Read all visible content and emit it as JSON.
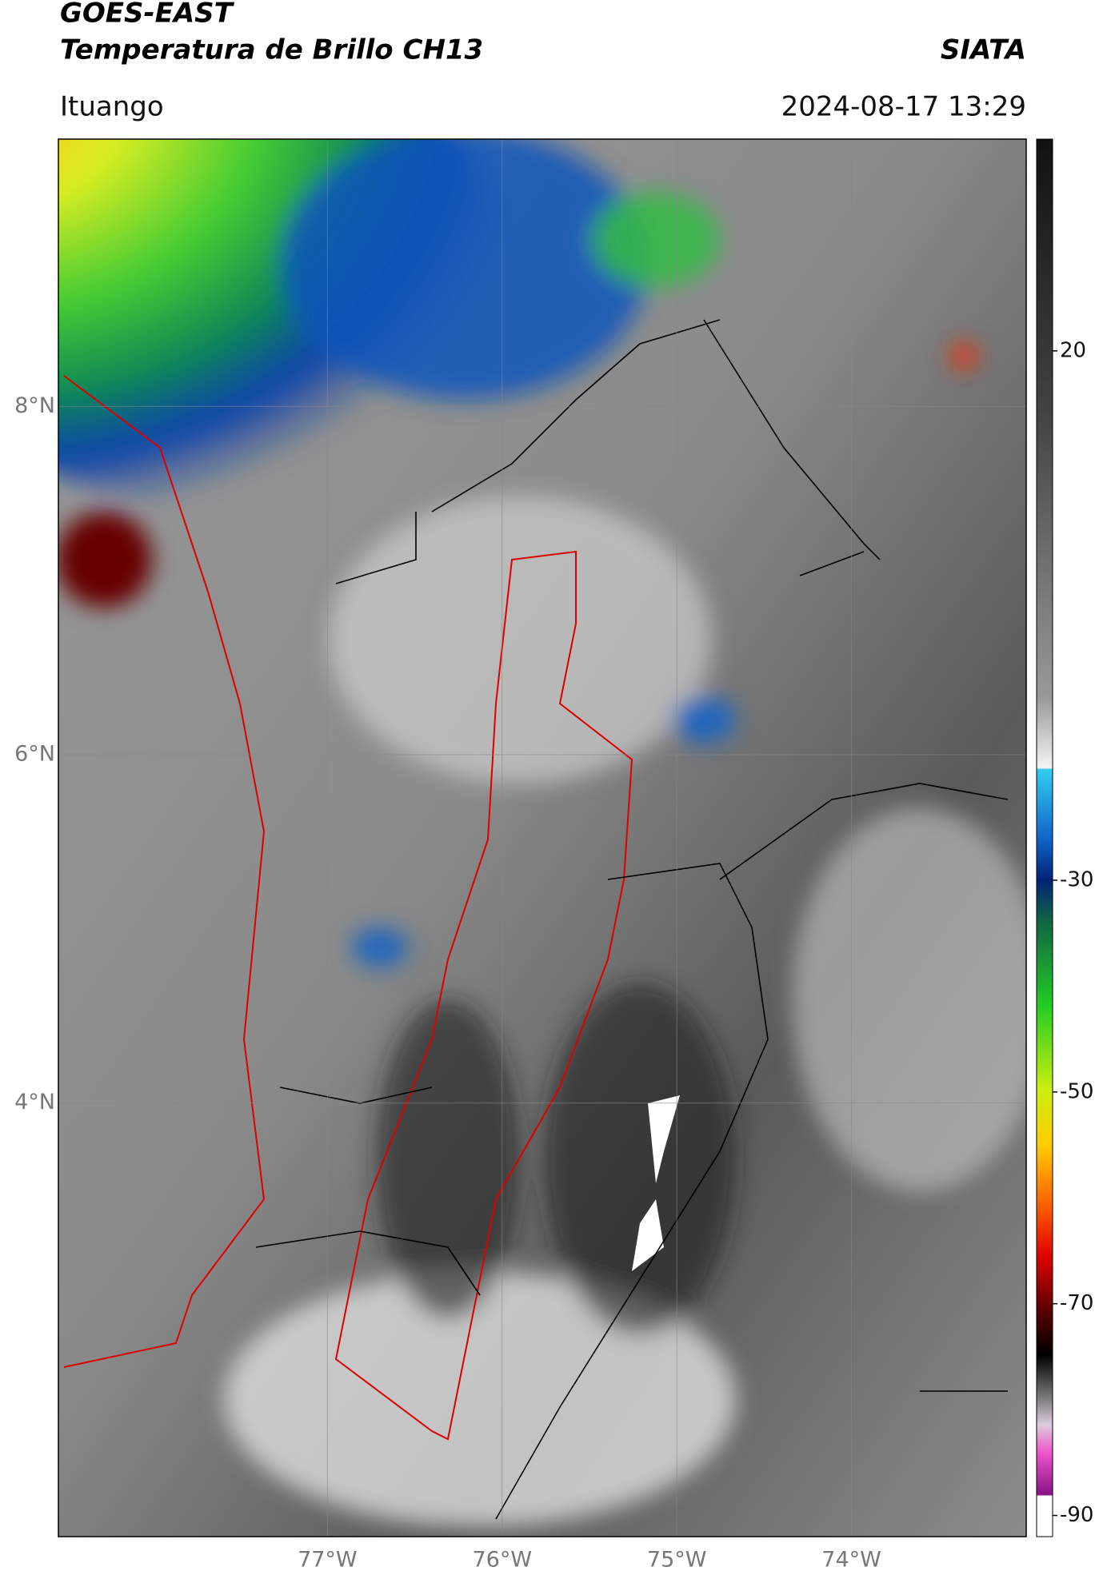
{
  "header": {
    "satellite": "GOES-EAST",
    "product": "Temperatura de Brillo CH13",
    "institution": "SIATA",
    "region": "Ituango",
    "datetime": "2024-08-17 13:29"
  },
  "map": {
    "lat_range": [
      1.51,
      9.535
    ],
    "lon_range": [
      -78.54,
      -73.0
    ],
    "lat_ticks": [
      {
        "value": 8,
        "label": "8°N"
      },
      {
        "value": 6,
        "label": "6°N"
      },
      {
        "value": 4,
        "label": "4°N"
      }
    ],
    "lon_ticks": [
      {
        "value": -77,
        "label": "77°W"
      },
      {
        "value": -76,
        "label": "76°W"
      },
      {
        "value": -75,
        "label": "75°W"
      },
      {
        "value": -74,
        "label": "74°W"
      }
    ]
  },
  "colorbar": {
    "lim": [
      -92,
      40
    ],
    "ticks": [
      20,
      -30,
      -50,
      -70,
      -90
    ]
  }
}
